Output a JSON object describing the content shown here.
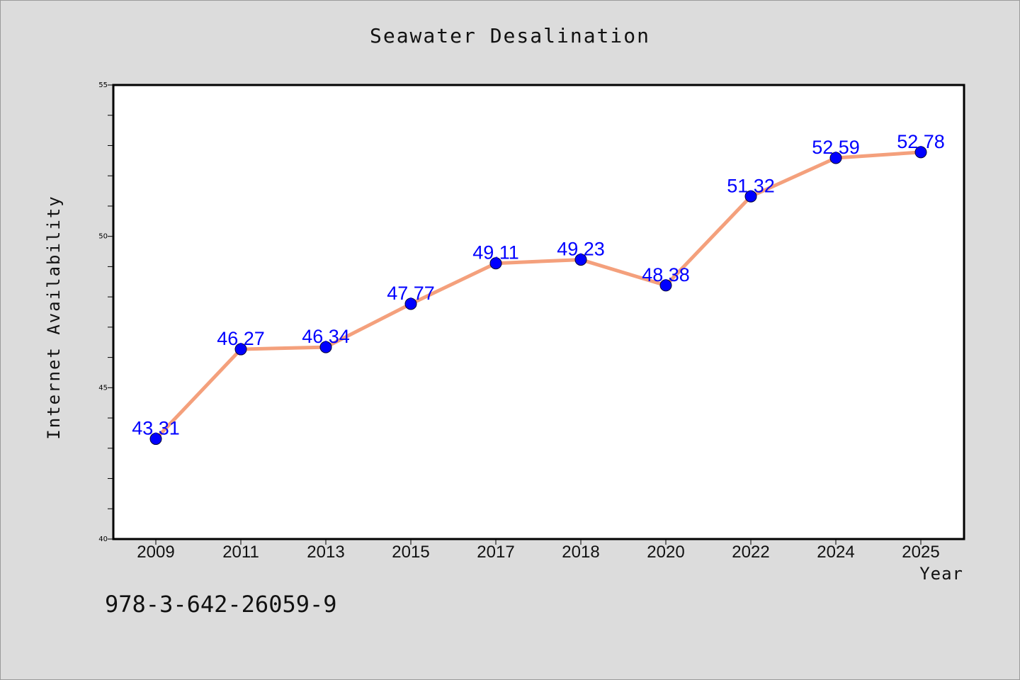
{
  "chart_data": {
    "type": "line",
    "title": "Seawater Desalination",
    "xlabel": "Year",
    "ylabel": "Internet Availability",
    "categories": [
      "2009",
      "2011",
      "2013",
      "2015",
      "2017",
      "2018",
      "2020",
      "2022",
      "2024",
      "2025"
    ],
    "series": [
      {
        "values": [
          43.31,
          46.27,
          46.34,
          47.77,
          49.11,
          49.23,
          48.38,
          51.32,
          52.59,
          52.78
        ]
      }
    ],
    "value_labels": [
      "43.31",
      "46.27",
      "46.34",
      "47.77",
      "49.11",
      "49.23",
      "48.38",
      "51.32",
      "52.59",
      "52.78"
    ],
    "ylim": [
      40,
      55
    ],
    "yticks": [
      "40",
      "45",
      "50",
      "55"
    ],
    "minor_ytick_step": 1,
    "grid": false,
    "colors": {
      "line": "#f4a07c",
      "marker": "#0000ff",
      "label": "#0000ff",
      "background": "#dcdcdc",
      "plot_area": "#ffffff"
    }
  },
  "footer": {
    "isbn": "978-3-642-26059-9"
  }
}
